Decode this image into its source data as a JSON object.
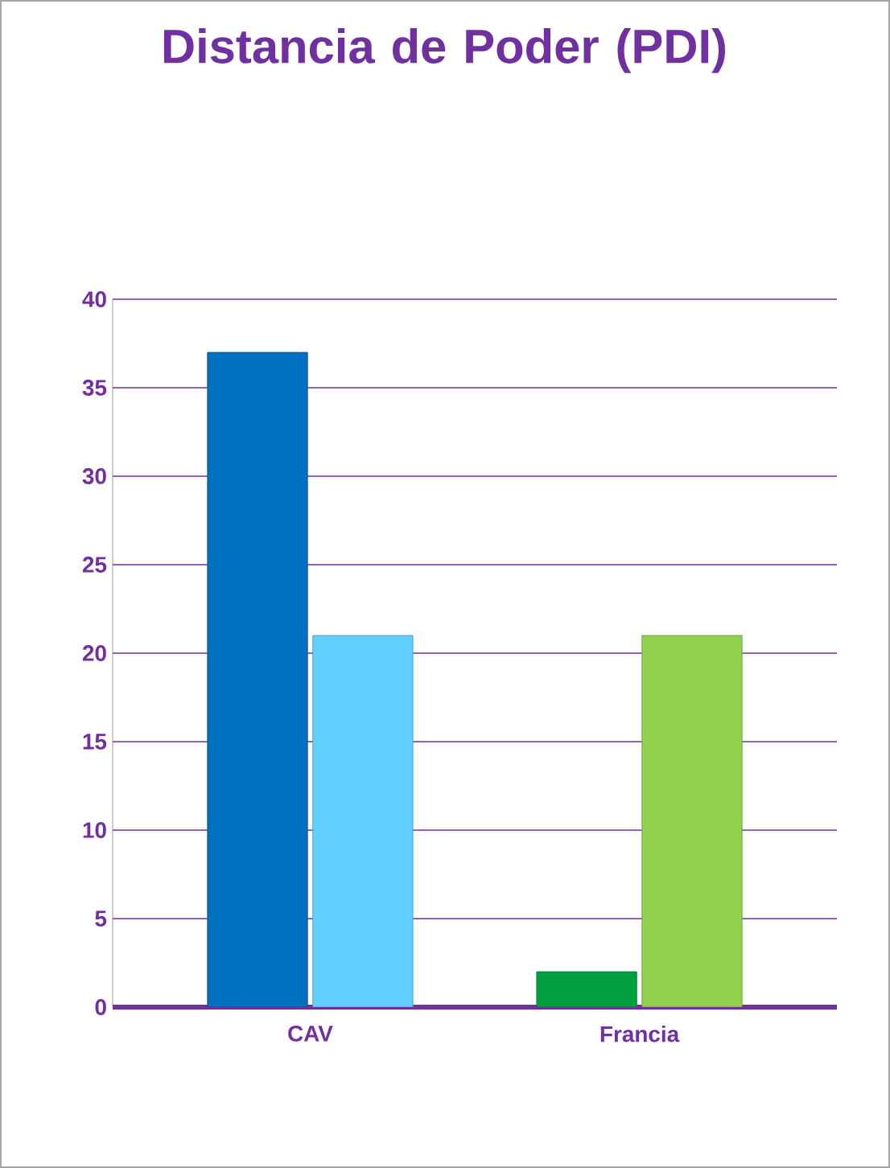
{
  "chart_data": {
    "type": "bar",
    "title": "Distancia de Poder (PDI)",
    "categories": [
      "CAV",
      "Francia"
    ],
    "series": [
      {
        "colors": [
          "#0070c0",
          "#00a040"
        ],
        "values": [
          37,
          2
        ]
      },
      {
        "colors": [
          "#5fd0ff",
          "#92d050"
        ],
        "values": [
          21,
          21
        ]
      }
    ],
    "ylim": [
      0,
      40
    ],
    "yticks": [
      0,
      5,
      10,
      15,
      20,
      25,
      30,
      35,
      40
    ],
    "grid": "y"
  }
}
